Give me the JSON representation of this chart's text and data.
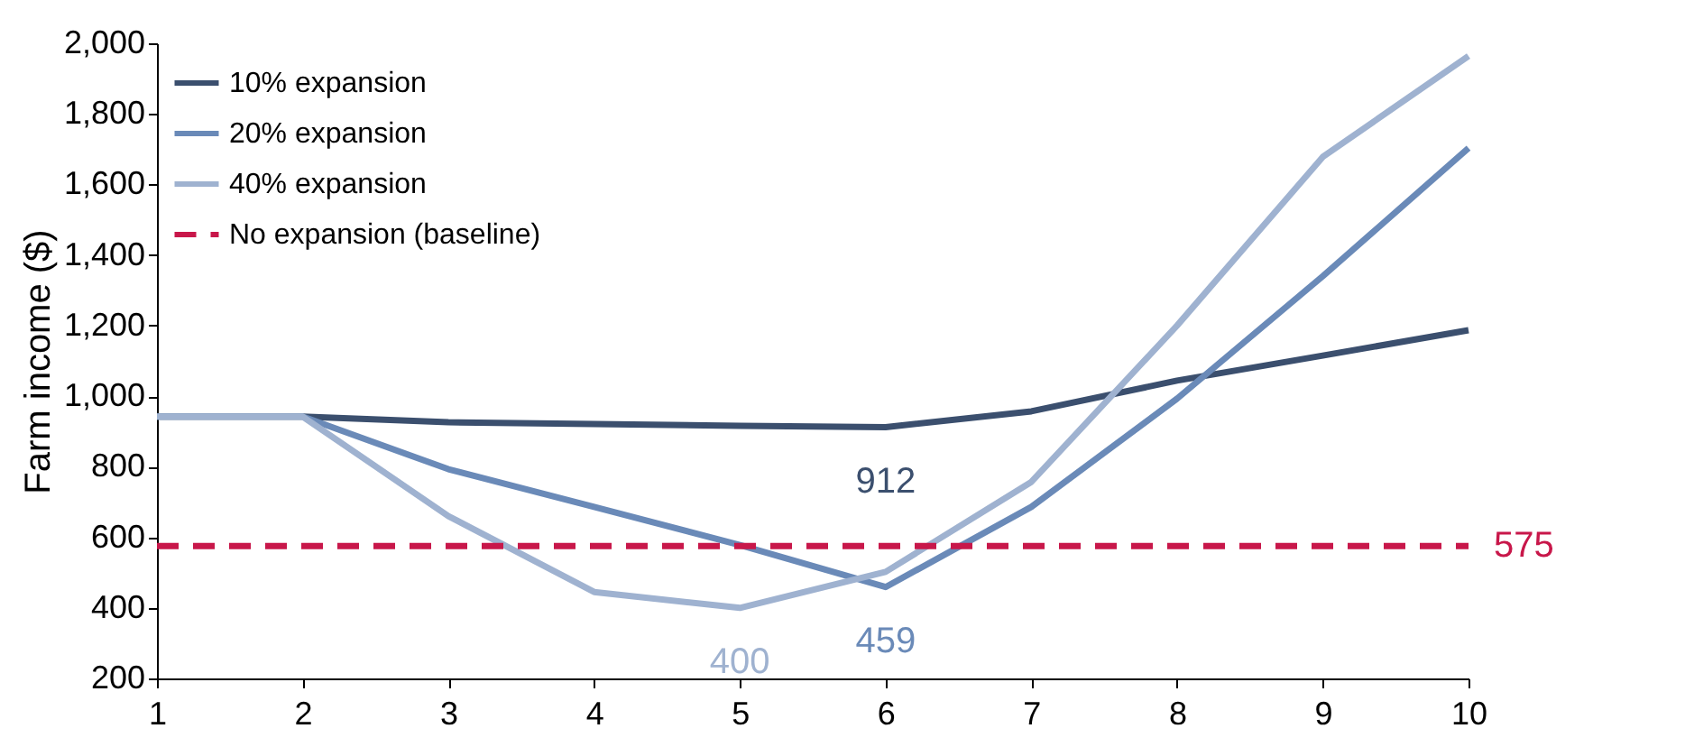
{
  "chart_data": {
    "type": "line",
    "ylabel": "Farm income ($)",
    "x": [
      1,
      2,
      3,
      4,
      5,
      6,
      7,
      8,
      9,
      10
    ],
    "series": [
      {
        "name": "10% expansion",
        "color": "#3b4f6e",
        "values": [
          942,
          942,
          926,
          921,
          916,
          912,
          957,
          1044,
          1115,
          1187
        ]
      },
      {
        "name": "20% expansion",
        "color": "#6a8ab8",
        "values": [
          942,
          942,
          793,
          686,
          578,
          459,
          686,
          993,
          1340,
          1703
        ]
      },
      {
        "name": "40% expansion",
        "color": "#9fb2d0",
        "values": [
          942,
          942,
          660,
          445,
          400,
          502,
          757,
          1200,
          1678,
          1964
        ]
      }
    ],
    "ref_lines": [
      {
        "axis": "y",
        "value": 575,
        "label": "No expansion (baseline)",
        "color": "#c8174a",
        "line_style": "dashed"
      }
    ],
    "annotations": [
      {
        "text": "912",
        "x": 6,
        "y": 912
      },
      {
        "text": "400",
        "x": 5,
        "y": 400
      },
      {
        "text": "459",
        "x": 6,
        "y": 459
      },
      {
        "text": "575",
        "x": 10,
        "y": 575
      }
    ],
    "xlim": [
      1,
      10
    ],
    "xticks": [
      1,
      2,
      3,
      4,
      5,
      6,
      7,
      8,
      9,
      10
    ],
    "ylim": [
      200,
      2000
    ],
    "yticks": [
      200,
      400,
      600,
      800,
      {
        "value": 1000,
        "label": "1,000"
      },
      {
        "value": 1200,
        "label": "1,200"
      },
      {
        "value": 1400,
        "label": "1,400"
      },
      {
        "value": 1600,
        "label": "1,600"
      },
      {
        "value": 1800,
        "label": "1,800"
      },
      {
        "value": 2000,
        "label": "2,000"
      }
    ],
    "grid": false,
    "legend": "top left",
    "line_style": "solid",
    "marker": "none"
  }
}
